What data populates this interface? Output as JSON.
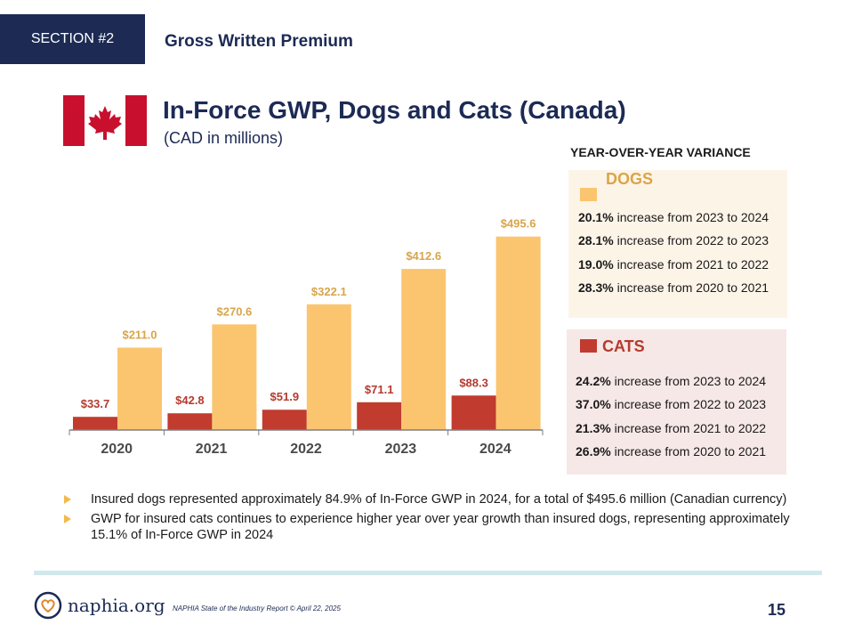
{
  "header": {
    "section_tag": "SECTION #2",
    "section_title": "Gross Written Premium",
    "title": "In-Force GWP, Dogs and Cats (Canada)",
    "subtitle": "(CAD in millions)"
  },
  "colors": {
    "navy": "#1c2a54",
    "dogs": "#fbc56f",
    "cats": "#c13b2f",
    "dogs_label": "#d9a54a",
    "cats_label": "#b53a2e",
    "flag_red": "#c8102e"
  },
  "chart_data": {
    "type": "bar",
    "categories": [
      "2020",
      "2021",
      "2022",
      "2023",
      "2024"
    ],
    "series": [
      {
        "name": "CATS",
        "values": [
          33.7,
          42.8,
          51.9,
          71.1,
          88.3
        ],
        "labels": [
          "$33.7",
          "$42.8",
          "$51.9",
          "$71.1",
          "$88.3"
        ]
      },
      {
        "name": "DOGS",
        "values": [
          211.0,
          270.6,
          322.1,
          412.6,
          495.6
        ],
        "labels": [
          "$211.0",
          "$270.6",
          "$322.1",
          "$412.6",
          "$495.6"
        ]
      }
    ],
    "ylim": [
      0,
      520
    ],
    "grid": false
  },
  "variance": {
    "heading": "YEAR-OVER-YEAR VARIANCE",
    "dogs": {
      "label": "DOGS",
      "items": [
        {
          "pct": "20.1%",
          "text": " increase from 2023 to 2024"
        },
        {
          "pct": "28.1%",
          "text": " increase from 2022 to 2023"
        },
        {
          "pct": "19.0%",
          "text": " increase from 2021 to 2022"
        },
        {
          "pct": "28.3%",
          "text": " increase from 2020 to 2021"
        }
      ]
    },
    "cats": {
      "label": "CATS",
      "items": [
        {
          "pct": "24.2%",
          "text": " increase from 2023 to 2024"
        },
        {
          "pct": "37.0%",
          "text": " increase from 2022 to 2023"
        },
        {
          "pct": "21.3%",
          "text": " increase from 2021 to 2022"
        },
        {
          "pct": "26.9%",
          "text": " increase from 2020 to 2021"
        }
      ]
    }
  },
  "bullets": [
    "Insured dogs represented approximately 84.9% of In-Force GWP in 2024, for a total of $495.6 million (Canadian currency)",
    "GWP for insured cats continues to experience higher year over year growth than insured dogs, representing approximately 15.1% of In-Force GWP in 2024"
  ],
  "footer": {
    "logo_text": "naphia.org",
    "note": "NAPHIA State of the Industry Report © April 22, 2025",
    "page_number": "15"
  }
}
